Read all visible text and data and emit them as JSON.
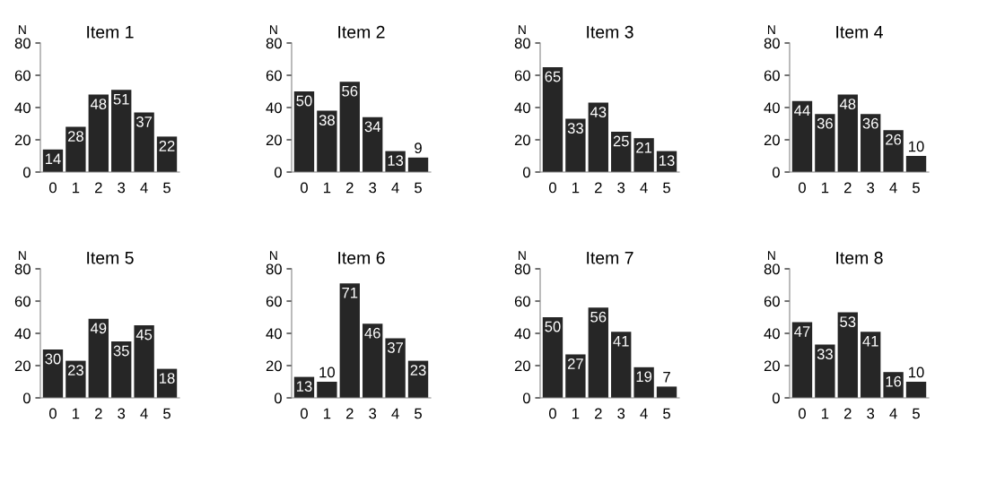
{
  "chart_data": [
    {
      "type": "bar",
      "title": "Item 1",
      "ylabel": "N",
      "categories": [
        "0",
        "1",
        "2",
        "3",
        "4",
        "5"
      ],
      "values": [
        14,
        28,
        48,
        51,
        37,
        22
      ],
      "color": "#262626",
      "ylim": [
        0,
        80
      ],
      "yticks": [
        0,
        20,
        40,
        60,
        80
      ],
      "data_labels": true
    },
    {
      "type": "bar",
      "title": "Item 2",
      "ylabel": "N",
      "categories": [
        "0",
        "1",
        "2",
        "3",
        "4",
        "5"
      ],
      "values": [
        50,
        38,
        56,
        34,
        13,
        9
      ],
      "color": "#262626",
      "ylim": [
        0,
        80
      ],
      "yticks": [
        0,
        20,
        40,
        60,
        80
      ],
      "data_labels": true
    },
    {
      "type": "bar",
      "title": "Item 3",
      "ylabel": "N",
      "categories": [
        "0",
        "1",
        "2",
        "3",
        "4",
        "5"
      ],
      "values": [
        65,
        33,
        43,
        25,
        21,
        13
      ],
      "color": "#262626",
      "ylim": [
        0,
        80
      ],
      "yticks": [
        0,
        20,
        40,
        60,
        80
      ],
      "data_labels": true
    },
    {
      "type": "bar",
      "title": "Item 4",
      "ylabel": "N",
      "categories": [
        "0",
        "1",
        "2",
        "3",
        "4",
        "5"
      ],
      "values": [
        44,
        36,
        48,
        36,
        26,
        10
      ],
      "color": "#262626",
      "ylim": [
        0,
        80
      ],
      "yticks": [
        0,
        20,
        40,
        60,
        80
      ],
      "data_labels": true
    },
    {
      "type": "bar",
      "title": "Item 5",
      "ylabel": "N",
      "categories": [
        "0",
        "1",
        "2",
        "3",
        "4",
        "5"
      ],
      "values": [
        30,
        23,
        49,
        35,
        45,
        18
      ],
      "color": "#262626",
      "ylim": [
        0,
        80
      ],
      "yticks": [
        0,
        20,
        40,
        60,
        80
      ],
      "data_labels": true
    },
    {
      "type": "bar",
      "title": "Item 6",
      "ylabel": "N",
      "categories": [
        "0",
        "1",
        "2",
        "3",
        "4",
        "5"
      ],
      "values": [
        13,
        10,
        71,
        46,
        37,
        23
      ],
      "color": "#262626",
      "ylim": [
        0,
        80
      ],
      "yticks": [
        0,
        20,
        40,
        60,
        80
      ],
      "data_labels": true
    },
    {
      "type": "bar",
      "title": "Item 7",
      "ylabel": "N",
      "categories": [
        "0",
        "1",
        "2",
        "3",
        "4",
        "5"
      ],
      "values": [
        50,
        27,
        56,
        41,
        19,
        7
      ],
      "color": "#262626",
      "ylim": [
        0,
        80
      ],
      "yticks": [
        0,
        20,
        40,
        60,
        80
      ],
      "data_labels": true
    },
    {
      "type": "bar",
      "title": "Item 8",
      "ylabel": "N",
      "categories": [
        "0",
        "1",
        "2",
        "3",
        "4",
        "5"
      ],
      "values": [
        47,
        33,
        53,
        41,
        16,
        10
      ],
      "color": "#262626",
      "ylim": [
        0,
        80
      ],
      "yticks": [
        0,
        20,
        40,
        60,
        80
      ],
      "data_labels": true
    }
  ]
}
